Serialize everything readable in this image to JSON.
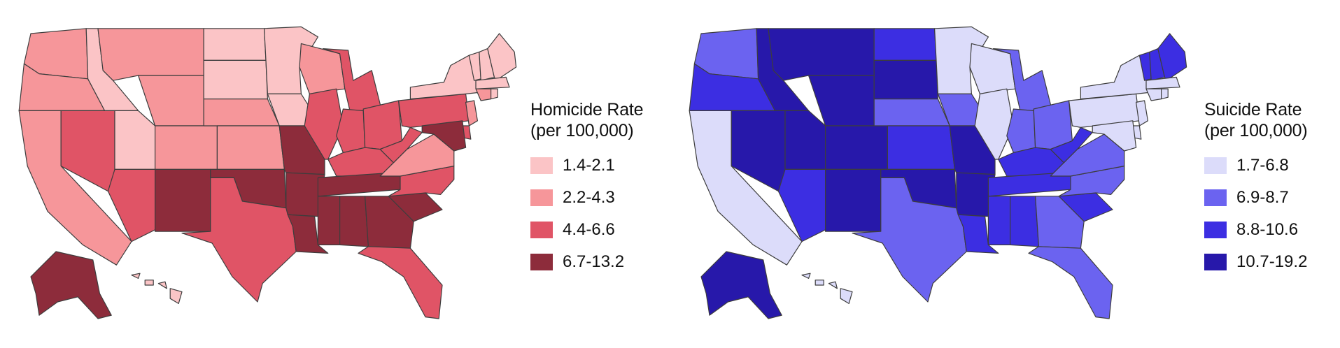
{
  "maps": [
    {
      "id": "homicide",
      "legend_title": [
        "Homicide Rate",
        "(per 100,000)"
      ],
      "classes": [
        {
          "label": "1.4-2.1",
          "color": "#fbc4c6"
        },
        {
          "label": "2.2-4.3",
          "color": "#f6969a"
        },
        {
          "label": "4.4-6.6",
          "color": "#e05466"
        },
        {
          "label": "6.7-13.2",
          "color": "#8d2c3b"
        }
      ],
      "states": {
        "WA": 1,
        "OR": 1,
        "CA": 1,
        "ID": 0,
        "NV": 2,
        "UT": 0,
        "AZ": 2,
        "MT": 1,
        "WY": 1,
        "CO": 1,
        "NM": 3,
        "ND": 0,
        "SD": 0,
        "NE": 1,
        "KS": 1,
        "OK": 3,
        "TX": 2,
        "MN": 0,
        "IA": 0,
        "MO": 3,
        "AR": 3,
        "LA": 3,
        "WI": 1,
        "IL": 2,
        "MI": 2,
        "IN": 2,
        "OH": 2,
        "KY": 2,
        "TN": 3,
        "MS": 3,
        "AL": 3,
        "GA": 3,
        "FL": 2,
        "SC": 3,
        "NC": 2,
        "VA": 1,
        "WV": 2,
        "PA": 2,
        "NY": 0,
        "VT": 0,
        "NH": 0,
        "ME": 0,
        "MA": 0,
        "CT": 1,
        "RI": 0,
        "NJ": 1,
        "DE": 2,
        "MD": 3,
        "AK": 3,
        "HI": 0
      }
    },
    {
      "id": "suicide",
      "legend_title": [
        "Suicide Rate",
        "(per 100,000)"
      ],
      "classes": [
        {
          "label": "1.7-6.8",
          "color": "#dcdcfa"
        },
        {
          "label": "6.9-8.7",
          "color": "#6b63f0"
        },
        {
          "label": "8.8-10.6",
          "color": "#3c2ee2"
        },
        {
          "label": "10.7-19.2",
          "color": "#2718aa"
        }
      ],
      "states": {
        "WA": 1,
        "OR": 2,
        "CA": 0,
        "ID": 3,
        "NV": 3,
        "UT": 3,
        "AZ": 2,
        "MT": 3,
        "WY": 3,
        "CO": 3,
        "NM": 3,
        "ND": 2,
        "SD": 3,
        "NE": 1,
        "KS": 2,
        "OK": 3,
        "TX": 1,
        "MN": 0,
        "IA": 1,
        "MO": 3,
        "AR": 3,
        "LA": 2,
        "WI": 0,
        "IL": 0,
        "MI": 1,
        "IN": 1,
        "OH": 1,
        "KY": 2,
        "TN": 2,
        "MS": 2,
        "AL": 2,
        "GA": 1,
        "FL": 1,
        "SC": 2,
        "NC": 1,
        "VA": 1,
        "WV": 2,
        "PA": 0,
        "NY": 0,
        "VT": 2,
        "NH": 2,
        "ME": 2,
        "MA": 0,
        "CT": 0,
        "RI": 0,
        "NJ": 0,
        "DE": 0,
        "MD": 0,
        "AK": 3,
        "HI": 0
      }
    }
  ]
}
